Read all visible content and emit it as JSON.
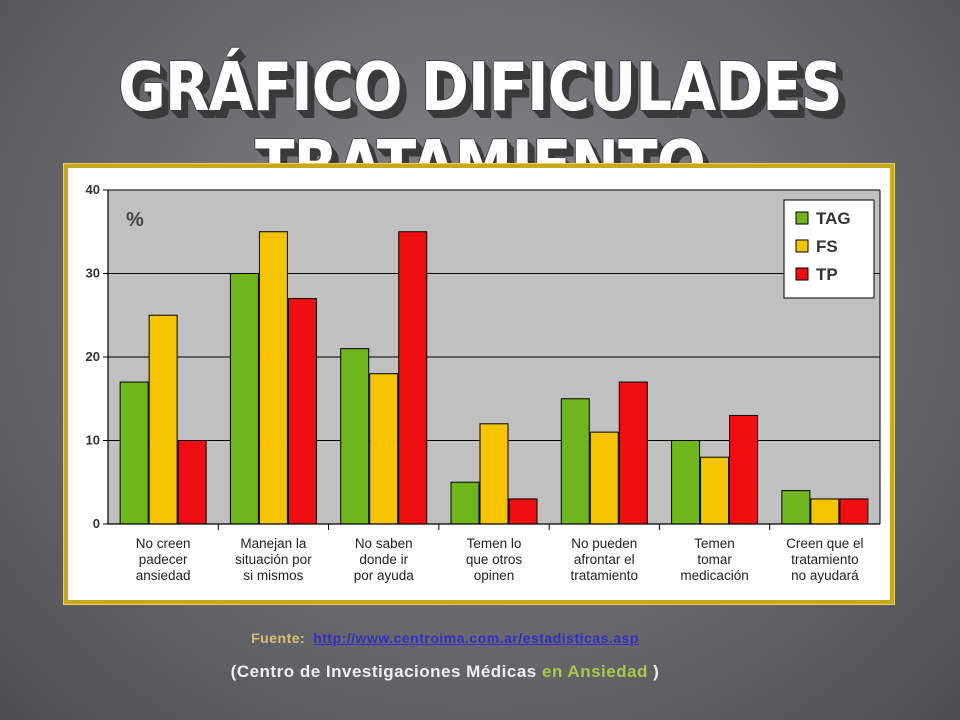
{
  "slide": {
    "title": "GRÁFICO DIFICULADES TRATAMIENTO",
    "source_label": "Fuente:",
    "source_url": "http://www.centroima.com.ar/estadisticas.asp",
    "center_open": "(Centro de Investigaciones Médicas",
    "center_tail": "en Ansiedad",
    "center_close": ")"
  },
  "chart_data": {
    "type": "bar",
    "ylabel": "%",
    "ylim": [
      0,
      40
    ],
    "yticks": [
      0,
      10,
      20,
      30,
      40
    ],
    "grid": true,
    "legend_position": "top-right",
    "categories": [
      [
        "No creen",
        "padecer",
        "ansiedad"
      ],
      [
        "Manejan la",
        "situación por",
        "si mismos"
      ],
      [
        "No saben",
        "donde ir",
        "por ayuda"
      ],
      [
        "Temen lo",
        "que otros",
        "opinen"
      ],
      [
        "No pueden",
        "afrontar el",
        "tratamiento"
      ],
      [
        "Temen",
        "tomar",
        "medicación"
      ],
      [
        "Creen que el",
        "tratamiento",
        "no ayudará"
      ]
    ],
    "series": [
      {
        "name": "TAG",
        "color": "#6fb51c",
        "values": [
          17,
          30,
          21,
          5,
          15,
          10,
          4
        ]
      },
      {
        "name": "FS",
        "color": "#f5c400",
        "values": [
          25,
          35,
          18,
          12,
          11,
          8,
          3
        ]
      },
      {
        "name": "TP",
        "color": "#ee1010",
        "values": [
          10,
          27,
          35,
          3,
          17,
          13,
          3
        ]
      }
    ]
  }
}
